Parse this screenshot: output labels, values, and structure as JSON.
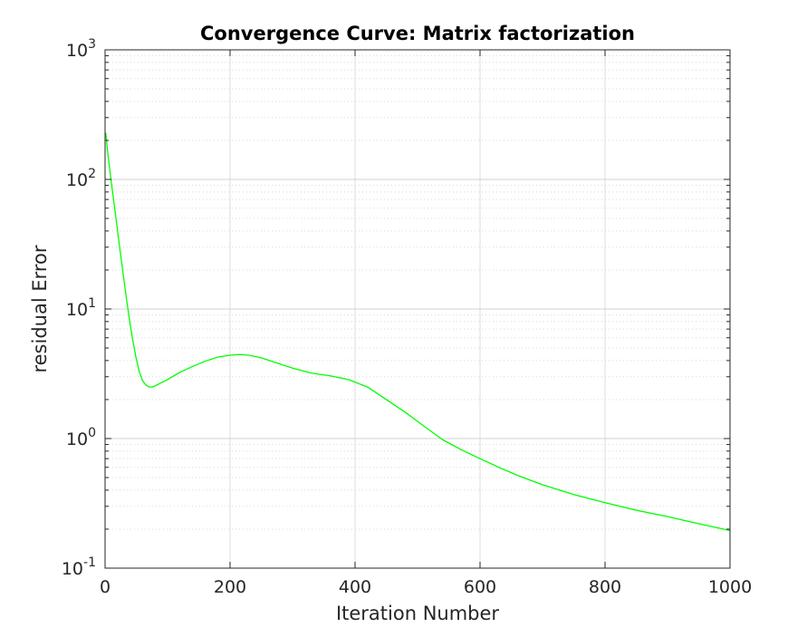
{
  "chart_data": {
    "type": "line",
    "title": "Convergence Curve: Matrix factorization",
    "xlabel": "Iteration Number",
    "ylabel": "residual Error",
    "xlim": [
      0,
      1000
    ],
    "ylim": [
      0.1,
      1000
    ],
    "yscale": "log",
    "grid": true,
    "x_ticks": [
      0,
      200,
      400,
      600,
      800,
      1000
    ],
    "y_ticks": [
      {
        "value": 0.1,
        "base": "10",
        "exp": "-1"
      },
      {
        "value": 1,
        "base": "10",
        "exp": "0"
      },
      {
        "value": 10,
        "base": "10",
        "exp": "1"
      },
      {
        "value": 100,
        "base": "10",
        "exp": "2"
      },
      {
        "value": 1000,
        "base": "10",
        "exp": "3"
      }
    ],
    "series": [
      {
        "color": "#00ff00",
        "x": [
          1,
          5,
          10,
          15,
          20,
          25,
          30,
          35,
          40,
          45,
          50,
          55,
          60,
          65,
          70,
          75,
          80,
          90,
          100,
          110,
          120,
          140,
          160,
          180,
          200,
          215,
          230,
          250,
          270,
          300,
          330,
          360,
          390,
          420,
          450,
          480,
          510,
          540,
          570,
          600,
          630,
          660,
          700,
          750,
          800,
          850,
          900,
          950,
          1000
        ],
        "y": [
          230,
          150,
          95,
          62,
          40,
          26,
          17,
          11.3,
          7.7,
          5.5,
          4.1,
          3.25,
          2.8,
          2.6,
          2.5,
          2.5,
          2.55,
          2.7,
          2.85,
          3.05,
          3.25,
          3.6,
          3.95,
          4.25,
          4.4,
          4.45,
          4.4,
          4.2,
          3.9,
          3.5,
          3.2,
          3.05,
          2.85,
          2.5,
          2.0,
          1.6,
          1.25,
          0.98,
          0.82,
          0.7,
          0.6,
          0.52,
          0.44,
          0.37,
          0.32,
          0.28,
          0.25,
          0.22,
          0.195
        ]
      }
    ]
  }
}
